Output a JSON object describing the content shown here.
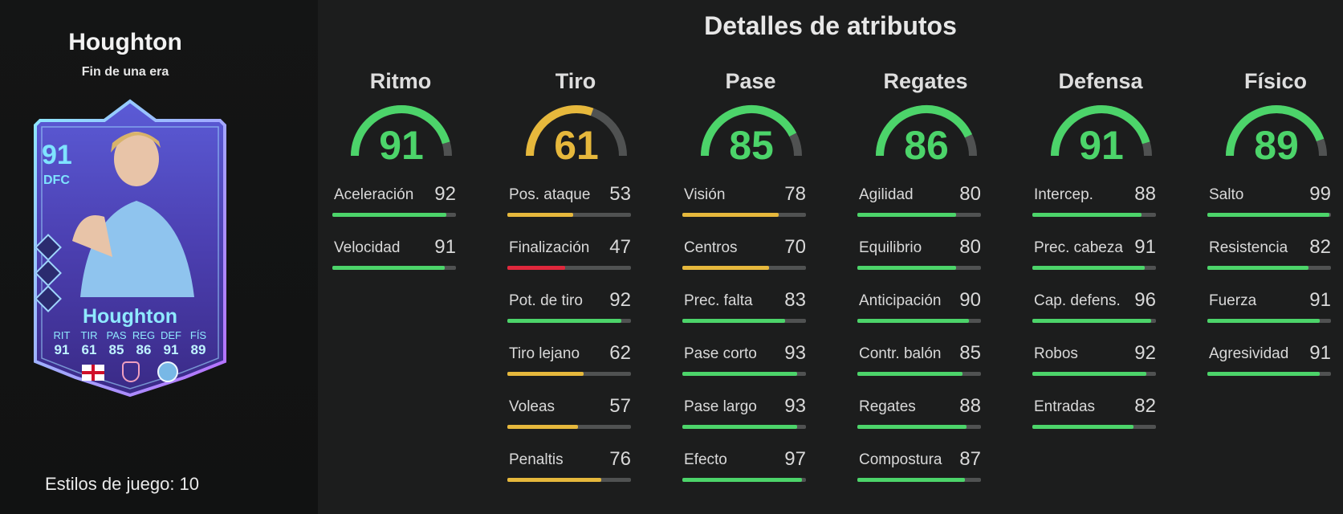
{
  "player": {
    "name": "Houghton",
    "subtitle": "Fin de una era",
    "playstyles_label": "Estilos de juego: 10"
  },
  "card": {
    "rating": "91",
    "position": "DFC",
    "name": "Houghton",
    "stats": [
      {
        "label": "RIT",
        "value": "91"
      },
      {
        "label": "TIR",
        "value": "61"
      },
      {
        "label": "PAS",
        "value": "85"
      },
      {
        "label": "REG",
        "value": "86"
      },
      {
        "label": "DEF",
        "value": "91"
      },
      {
        "label": "FÍS",
        "value": "89"
      }
    ],
    "nation_icon": "england-flag-icon",
    "league_icon": "league-crest-icon",
    "club_icon": "club-crest-icon"
  },
  "title": "Detalles de atributos",
  "colors": {
    "green": "#4cd46a",
    "yellow": "#e6b83c",
    "red": "#e0283c",
    "track": "#505252"
  },
  "categories": [
    {
      "name": "Ritmo",
      "value": 91,
      "attributes": [
        {
          "name": "Aceleración",
          "value": 92
        },
        {
          "name": "Velocidad",
          "value": 91
        }
      ]
    },
    {
      "name": "Tiro",
      "value": 61,
      "attributes": [
        {
          "name": "Pos. ataque",
          "value": 53
        },
        {
          "name": "Finalización",
          "value": 47
        },
        {
          "name": "Pot. de tiro",
          "value": 92
        },
        {
          "name": "Tiro lejano",
          "value": 62
        },
        {
          "name": "Voleas",
          "value": 57
        },
        {
          "name": "Penaltis",
          "value": 76
        }
      ]
    },
    {
      "name": "Pase",
      "value": 85,
      "attributes": [
        {
          "name": "Visión",
          "value": 78
        },
        {
          "name": "Centros",
          "value": 70
        },
        {
          "name": "Prec. falta",
          "value": 83
        },
        {
          "name": "Pase corto",
          "value": 93
        },
        {
          "name": "Pase largo",
          "value": 93
        },
        {
          "name": "Efecto",
          "value": 97
        }
      ]
    },
    {
      "name": "Regates",
      "value": 86,
      "attributes": [
        {
          "name": "Agilidad",
          "value": 80
        },
        {
          "name": "Equilibrio",
          "value": 80
        },
        {
          "name": "Anticipación",
          "value": 90
        },
        {
          "name": "Contr. balón",
          "value": 85
        },
        {
          "name": "Regates",
          "value": 88
        },
        {
          "name": "Compostura",
          "value": 87
        }
      ]
    },
    {
      "name": "Defensa",
      "value": 91,
      "attributes": [
        {
          "name": "Intercep.",
          "value": 88
        },
        {
          "name": "Prec. cabeza",
          "value": 91
        },
        {
          "name": "Cap. defens.",
          "value": 96
        },
        {
          "name": "Robos",
          "value": 92
        },
        {
          "name": "Entradas",
          "value": 82
        }
      ]
    },
    {
      "name": "Físico",
      "value": 89,
      "attributes": [
        {
          "name": "Salto",
          "value": 99
        },
        {
          "name": "Resistencia",
          "value": 82
        },
        {
          "name": "Fuerza",
          "value": 91
        },
        {
          "name": "Agresividad",
          "value": 91
        }
      ]
    }
  ]
}
